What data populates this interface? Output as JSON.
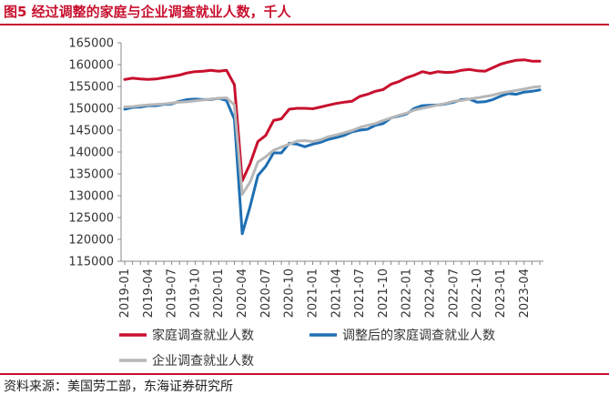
{
  "title": "图5 经过调整的家庭与企业调查就业人数，千人",
  "source": "资料来源：美国劳工部，东海证券研究所",
  "chart_data": {
    "type": "line",
    "title": "图5 经过调整的家庭与企业调查就业人数，千人",
    "xlabel": "",
    "ylabel": "",
    "ylim": [
      115000,
      165000
    ],
    "yticks": [
      115000,
      120000,
      125000,
      130000,
      135000,
      140000,
      145000,
      150000,
      155000,
      160000,
      165000
    ],
    "xtick_labels": [
      "2019-01",
      "2019-04",
      "2019-07",
      "2019-10",
      "2020-01",
      "2020-04",
      "2020-07",
      "2020-10",
      "2021-01",
      "2021-04",
      "2021-07",
      "2021-10",
      "2022-01",
      "2022-04",
      "2022-07",
      "2022-10",
      "2023-01",
      "2023-04"
    ],
    "x": [
      "2019-01",
      "2019-02",
      "2019-03",
      "2019-04",
      "2019-05",
      "2019-06",
      "2019-07",
      "2019-08",
      "2019-09",
      "2019-10",
      "2019-11",
      "2019-12",
      "2020-01",
      "2020-02",
      "2020-03",
      "2020-04",
      "2020-05",
      "2020-06",
      "2020-07",
      "2020-08",
      "2020-09",
      "2020-10",
      "2020-11",
      "2020-12",
      "2021-01",
      "2021-02",
      "2021-03",
      "2021-04",
      "2021-05",
      "2021-06",
      "2021-07",
      "2021-08",
      "2021-09",
      "2021-10",
      "2021-11",
      "2021-12",
      "2022-01",
      "2022-02",
      "2022-03",
      "2022-04",
      "2022-05",
      "2022-06",
      "2022-07",
      "2022-08",
      "2022-09",
      "2022-10",
      "2022-11",
      "2022-12",
      "2023-01",
      "2023-02",
      "2023-03",
      "2023-04",
      "2023-05",
      "2023-06"
    ],
    "grid": false,
    "legend_position": "bottom",
    "series": [
      {
        "name": "家庭调查就业人数",
        "color": "#c8102e",
        "values": [
          156600,
          156900,
          156700,
          156600,
          156700,
          157000,
          157300,
          157600,
          158100,
          158400,
          158500,
          158700,
          158500,
          158700,
          155400,
          133400,
          137300,
          142400,
          143800,
          147200,
          147600,
          149800,
          150000,
          150000,
          149900,
          150300,
          150700,
          151100,
          151400,
          151600,
          152700,
          153200,
          153900,
          154300,
          155500,
          156100,
          157000,
          157600,
          158400,
          158000,
          158400,
          158200,
          158300,
          158700,
          158900,
          158600,
          158500,
          159300,
          160100,
          160600,
          161000,
          161100,
          160800,
          160800
        ]
      },
      {
        "name": "调整后的家庭调查就业人数",
        "color": "#1f6fb3",
        "values": [
          149800,
          150200,
          150300,
          150600,
          150600,
          150900,
          151000,
          151600,
          152000,
          152100,
          152000,
          152000,
          152300,
          151800,
          147500,
          121300,
          127500,
          134600,
          136700,
          139800,
          139800,
          142000,
          141800,
          141200,
          141800,
          142200,
          142900,
          143300,
          143800,
          144600,
          145000,
          145200,
          146100,
          146500,
          147800,
          148200,
          148700,
          150000,
          150600,
          150700,
          150800,
          151000,
          151400,
          152000,
          152100,
          151400,
          151500,
          152000,
          152800,
          153400,
          153200,
          153700,
          153900,
          154200
        ]
      },
      {
        "name": "企业调查就业人数",
        "color": "#b7b7b7",
        "values": [
          150300,
          150400,
          150600,
          150800,
          150900,
          151000,
          151200,
          151400,
          151500,
          151700,
          151900,
          152100,
          152300,
          152400,
          150800,
          130300,
          133100,
          137700,
          138900,
          140400,
          141100,
          141800,
          142500,
          142600,
          142400,
          142800,
          143500,
          143900,
          144400,
          144900,
          145600,
          146100,
          146500,
          147200,
          147800,
          148400,
          148900,
          149600,
          150000,
          150400,
          150800,
          151100,
          151600,
          151800,
          152100,
          152400,
          152700,
          153000,
          153500,
          153800,
          154100,
          154400,
          154800,
          155000
        ]
      }
    ]
  }
}
